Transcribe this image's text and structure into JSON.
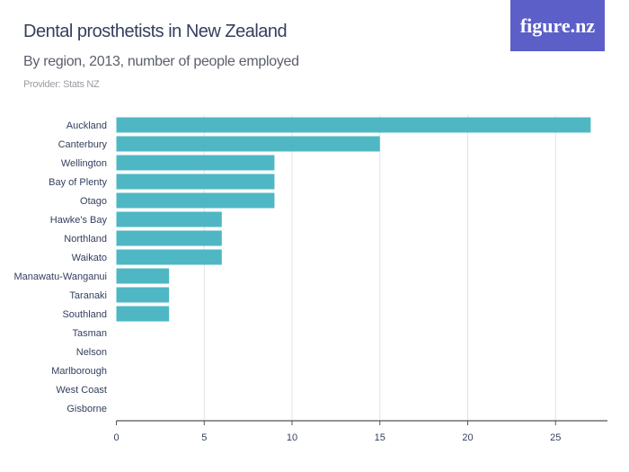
{
  "header": {
    "title": "Dental prosthetists in New Zealand",
    "subtitle": "By region, 2013, number of people employed",
    "provider": "Provider: Stats NZ",
    "logo": "figure.nz"
  },
  "colors": {
    "bar": "#4fb7c4",
    "grid": "#e2e2e2",
    "axis": "#555555",
    "logo_bg": "#5b5fc7"
  },
  "chart_data": {
    "type": "bar",
    "orientation": "horizontal",
    "title": "Dental prosthetists in New Zealand",
    "subtitle": "By region, 2013, number of people employed",
    "categories": [
      "Auckland",
      "Canterbury",
      "Wellington",
      "Bay of Plenty",
      "Otago",
      "Hawke's Bay",
      "Northland",
      "Waikato",
      "Manawatu-Wanganui",
      "Taranaki",
      "Southland",
      "Tasman",
      "Nelson",
      "Marlborough",
      "West Coast",
      "Gisborne"
    ],
    "values": [
      27,
      15,
      9,
      9,
      9,
      6,
      6,
      6,
      3,
      3,
      3,
      0,
      0,
      0,
      0,
      0
    ],
    "xlim": [
      0,
      28
    ],
    "xticks": [
      0,
      5,
      10,
      15,
      20,
      25
    ],
    "grid": true,
    "legend": "none"
  }
}
